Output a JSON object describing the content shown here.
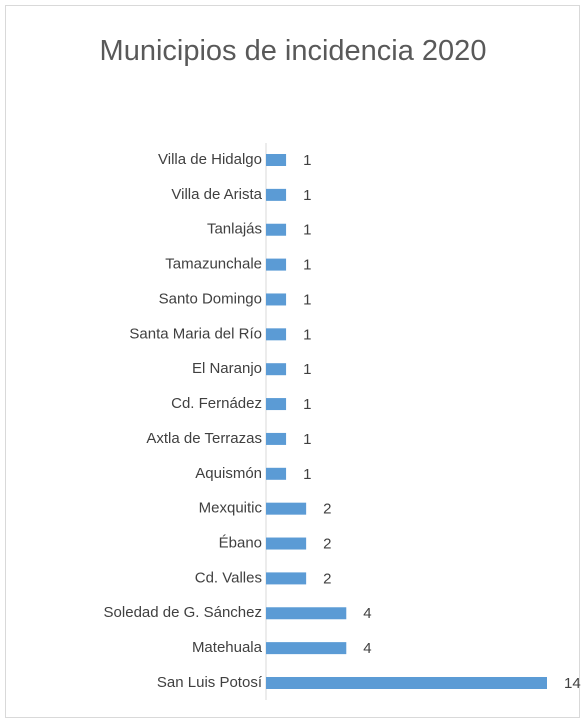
{
  "chart_data": {
    "type": "bar",
    "orientation": "horizontal",
    "title": "Municipios de incidencia 2020",
    "categories": [
      "Villa de Hidalgo",
      "Villa de Arista",
      "Tanlajás",
      "Tamazunchale",
      "Santo Domingo",
      "Santa Maria del Río",
      "El Naranjo",
      "Cd. Fernádez",
      "Axtla de Terrazas",
      "Aquismón",
      "Mexquitic",
      "Ébano",
      "Cd. Valles",
      "Soledad de G. Sánchez",
      "Matehuala",
      "San Luis Potosí"
    ],
    "values": [
      1,
      1,
      1,
      1,
      1,
      1,
      1,
      1,
      1,
      1,
      2,
      2,
      2,
      4,
      4,
      14
    ],
    "color": "#5b9bd5"
  }
}
